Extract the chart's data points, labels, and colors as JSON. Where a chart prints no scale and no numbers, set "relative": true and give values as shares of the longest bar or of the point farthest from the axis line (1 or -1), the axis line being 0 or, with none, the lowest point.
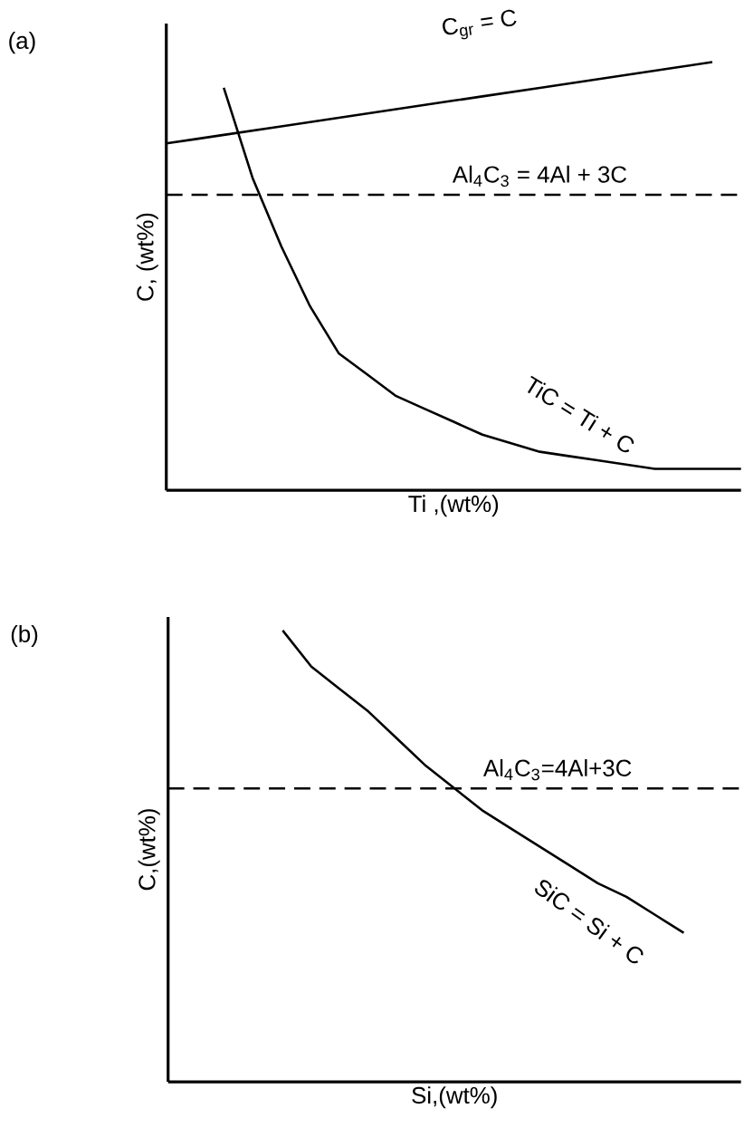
{
  "chart_data": [
    {
      "type": "line",
      "title": "(a)",
      "xlabel": "Ti ,(wt%)",
      "ylabel": "C, (wt%)",
      "relative": true,
      "line_style": "solid",
      "categories": [
        null,
        null,
        null,
        null,
        null,
        null,
        null,
        null,
        null,
        null,
        null,
        null,
        null,
        null,
        null,
        null,
        null,
        null,
        null,
        null,
        null
      ],
      "series": [
        {
          "name": "C$_{gr}$ = C",
          "color": "#000000",
          "values": [
            0.81,
            0.82,
            0.83,
            0.84,
            0.85,
            0.86,
            0.87,
            0.88,
            0.89,
            0.9,
            0.91,
            0.92,
            0.93,
            0.94,
            0.95,
            0.96,
            0.97,
            0.98,
            0.99,
            1.0,
            null
          ]
        },
        {
          "name": "TiC = Ti + C",
          "color": "#000000",
          "values": [
            null,
            null,
            0.94,
            0.73,
            0.57,
            0.43,
            0.32,
            0.27,
            0.22,
            0.19,
            0.16,
            0.13,
            0.11,
            0.09,
            0.08,
            0.07,
            0.06,
            0.05,
            0.05,
            0.05,
            0.05
          ]
        }
      ],
      "ref_lines": [
        {
          "axis": "y",
          "value": 0.69,
          "color": "#000000",
          "line_style": "dashed"
        }
      ],
      "annotations": [
        "Al$_{4}$C$_{3}$ = 4Al + 3C"
      ]
    },
    {
      "type": "line",
      "title": "(b)",
      "xlabel": "Si,(wt%)",
      "ylabel": "C,(wt%)",
      "relative": true,
      "line_style": "solid",
      "categories": [
        null,
        null,
        null,
        null,
        null,
        null,
        null,
        null,
        null,
        null,
        null,
        null,
        null,
        null,
        null,
        null,
        null,
        null,
        null,
        null,
        null
      ],
      "series": [
        {
          "name": "SiC = Si + C",
          "color": "#000000",
          "values": [
            null,
            null,
            null,
            null,
            1.0,
            0.92,
            0.87,
            0.82,
            0.76,
            0.7,
            0.65,
            0.6,
            0.56,
            0.52,
            0.48,
            0.44,
            0.41,
            0.37,
            0.33,
            null,
            null
          ]
        }
      ],
      "ref_lines": [
        {
          "axis": "y",
          "value": 0.65,
          "color": "#000000",
          "line_style": "dashed"
        }
      ],
      "annotations": [
        "Al$_{4}$C$_{3}$=4Al+3C"
      ]
    }
  ]
}
